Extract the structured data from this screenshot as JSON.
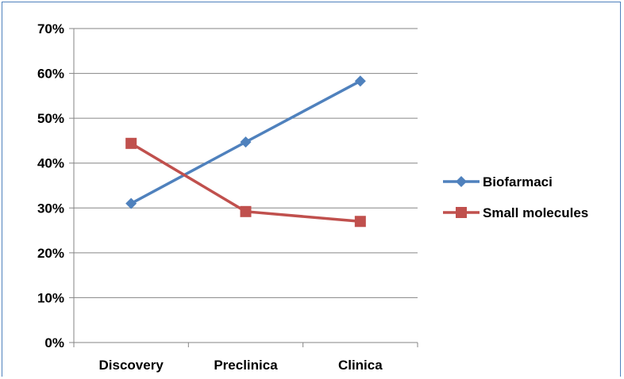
{
  "chart_data": {
    "type": "line",
    "categories": [
      "Discovery",
      "Preclinica",
      "Clinica"
    ],
    "y_ticks": [
      "0%",
      "10%",
      "20%",
      "30%",
      "40%",
      "50%",
      "60%",
      "70%"
    ],
    "ylim": [
      0,
      70
    ],
    "grid": true,
    "legend_position": "right",
    "series": [
      {
        "name": "Biofarmaci",
        "values": [
          31,
          44.7,
          58.3
        ],
        "color": "#4f81bd",
        "marker": "diamond"
      },
      {
        "name": "Small molecules",
        "values": [
          44.4,
          29.2,
          27
        ],
        "color": "#c0504d",
        "marker": "square"
      }
    ]
  }
}
